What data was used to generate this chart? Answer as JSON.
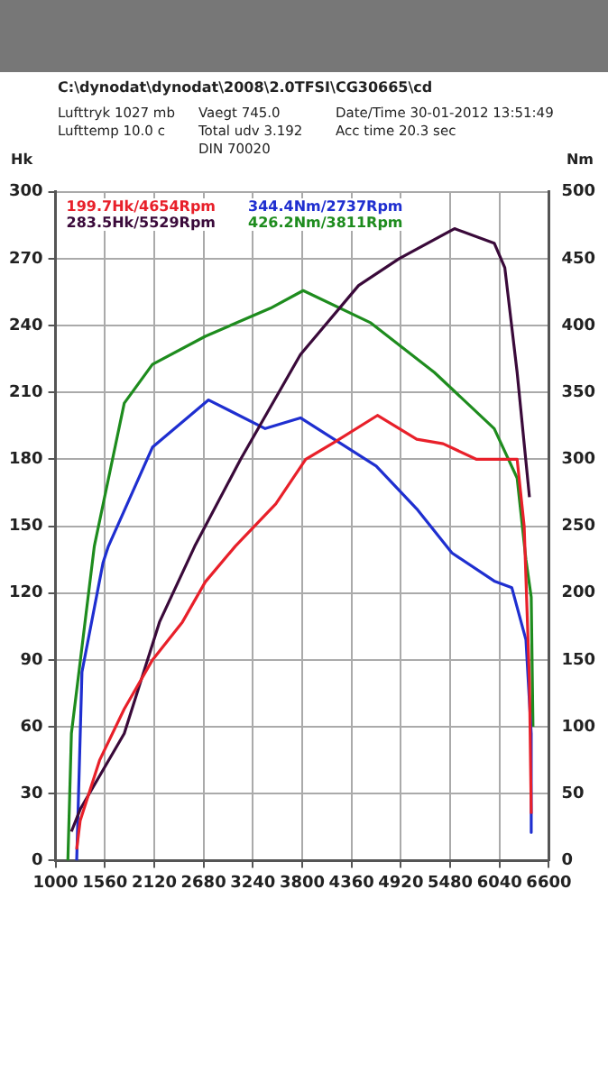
{
  "chart_data": {
    "type": "line",
    "title": "C:\\dynodat\\dynodat\\2008\\2.0TFSI\\CG30665\\cd",
    "ylabel": "Hk",
    "y2label": "Nm",
    "annotations": [
      "Lufttryk  1027 mb",
      "Vaegt    745.0",
      "Date/Time  30-01-2012 13:51:49",
      "Lufttemp  10.0 c",
      "Total udv 3.192",
      "Acc time  20.3 sec",
      "DIN 70020"
    ],
    "xlim": [
      1000,
      6600
    ],
    "xticks": [
      1000,
      1560,
      2120,
      2680,
      3240,
      3800,
      4360,
      4920,
      5480,
      6040,
      6600
    ],
    "ylim": [
      0,
      300
    ],
    "yticks": [
      0,
      30,
      60,
      90,
      120,
      150,
      180,
      210,
      240,
      270,
      300
    ],
    "y2lim": [
      0,
      500
    ],
    "y2ticks": [
      0,
      50,
      100,
      150,
      200,
      250,
      300,
      350,
      400,
      450,
      500
    ],
    "grid": true,
    "legend": "top left",
    "line_style": "solid",
    "marker": "none",
    "series": [
      {
        "name": "199.7Hk/4654Rpm",
        "color": "#e8202a",
        "x": [
          1240,
          1280,
          1500,
          1780,
          2100,
          2440,
          2700,
          3040,
          3500,
          3840,
          4180,
          4654,
          5100,
          5400,
          5780,
          6000,
          6240,
          6320,
          6380,
          6400
        ],
        "values": [
          5,
          18,
          45,
          68,
          90,
          107,
          125,
          141,
          160,
          180,
          188,
          199.7,
          189,
          187,
          180,
          180,
          180,
          150,
          80,
          21
        ]
      },
      {
        "name": "283.5Hk/5529Rpm",
        "color": "#3a0a3a",
        "x": [
          1180,
          1280,
          1780,
          2180,
          2580,
          3100,
          3780,
          4440,
          4900,
          5529,
          5980,
          6100,
          6240,
          6380
        ],
        "values": [
          13,
          23,
          57,
          107,
          141,
          180,
          227,
          258,
          270,
          283.5,
          277,
          266,
          219,
          163
        ]
      },
      {
        "name": "344.4Nm/2737Rpm",
        "color": "#1f2fd0",
        "axis": "y2",
        "x": [
          1240,
          1300,
          1540,
          1600,
          2100,
          2737,
          3380,
          3780,
          4640,
          5100,
          5500,
          5980,
          6180,
          6340,
          6400,
          6400
        ],
        "values": [
          0,
          141,
          223,
          235,
          309,
          344.4,
          323,
          331,
          295,
          263,
          230,
          209,
          204,
          165,
          95,
          21
        ]
      },
      {
        "name": "426.2Nm/3811Rpm",
        "color": "#1e8c1e",
        "axis": "y2",
        "x": [
          1140,
          1180,
          1440,
          1780,
          2100,
          2700,
          3440,
          3811,
          4580,
          5300,
          5980,
          6240,
          6340,
          6400,
          6420
        ],
        "values": [
          0,
          95,
          235,
          342,
          371,
          392,
          413,
          426.2,
          402,
          365,
          323,
          286,
          225,
          197,
          100
        ]
      }
    ]
  }
}
